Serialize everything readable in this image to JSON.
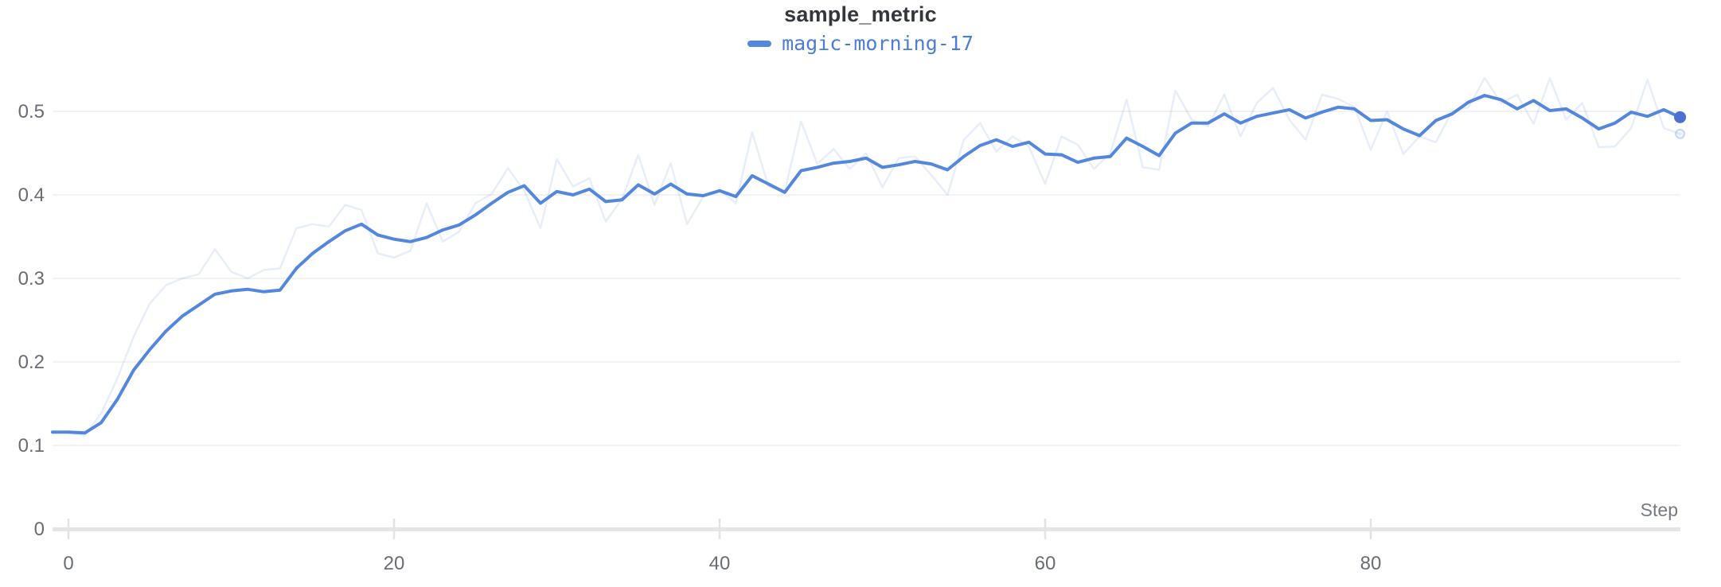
{
  "header": {
    "title": "sample_metric"
  },
  "legend": {
    "items": [
      {
        "label": "magic-morning-17",
        "color": "#5387DD"
      }
    ]
  },
  "axes": {
    "x_label": "Step",
    "x_ticks": [
      0,
      20,
      40,
      60,
      80
    ],
    "y_ticks": [
      0,
      0.1,
      0.2,
      0.3,
      0.4,
      0.5
    ]
  },
  "colors": {
    "line": "#5387DD",
    "endpoint_dot": "#4B70D2",
    "raw_line_rgba": "rgba(83,135,221,0.14)",
    "raw_ring_rgba": "rgba(83,135,221,0.30)",
    "raw_fill_rgba": "rgba(83,135,221,0.08)",
    "gridline": "#ededed",
    "axis_band": "#e5e5e5",
    "tick_mark": "#e3e3e3",
    "tick_text": "#696c76",
    "step_text": "#767982",
    "title_text": "#33363c"
  },
  "chart_data": {
    "type": "line",
    "title": "sample_metric",
    "xlabel": "Step",
    "ylabel": "",
    "xlim": [
      0,
      99
    ],
    "ylim": [
      0,
      0.555
    ],
    "xticks": [
      0,
      20,
      40,
      60,
      80
    ],
    "yticks": [
      0,
      0.1,
      0.2,
      0.3,
      0.4,
      0.5
    ],
    "grid": "horizontal-only",
    "legend_position": "top-center",
    "x": [
      0,
      1,
      2,
      3,
      4,
      5,
      6,
      7,
      8,
      9,
      10,
      11,
      12,
      13,
      14,
      15,
      16,
      17,
      18,
      19,
      20,
      21,
      22,
      23,
      24,
      25,
      26,
      27,
      28,
      29,
      30,
      31,
      32,
      33,
      34,
      35,
      36,
      37,
      38,
      39,
      40,
      41,
      42,
      43,
      44,
      45,
      46,
      47,
      48,
      49,
      50,
      51,
      52,
      53,
      54,
      55,
      56,
      57,
      58,
      59,
      60,
      61,
      62,
      63,
      64,
      65,
      66,
      67,
      68,
      69,
      70,
      71,
      72,
      73,
      74,
      75,
      76,
      77,
      78,
      79,
      80,
      81,
      82,
      83,
      84,
      85,
      86,
      87,
      88,
      89,
      90,
      91,
      92,
      93,
      94,
      95,
      96,
      97,
      98,
      99
    ],
    "series": [
      {
        "name": "magic-morning-17 (smoothed)",
        "role": "smoothed",
        "end_value": 0.493,
        "values": [
          0.116,
          0.115,
          0.127,
          0.155,
          0.19,
          0.215,
          0.237,
          0.255,
          0.268,
          0.281,
          0.285,
          0.287,
          0.284,
          0.286,
          0.312,
          0.33,
          0.344,
          0.357,
          0.365,
          0.352,
          0.347,
          0.344,
          0.349,
          0.358,
          0.364,
          0.376,
          0.39,
          0.403,
          0.411,
          0.39,
          0.404,
          0.4,
          0.407,
          0.392,
          0.394,
          0.412,
          0.401,
          0.413,
          0.401,
          0.399,
          0.405,
          0.398,
          0.423,
          0.413,
          0.403,
          0.429,
          0.433,
          0.438,
          0.44,
          0.444,
          0.433,
          0.436,
          0.44,
          0.437,
          0.43,
          0.446,
          0.459,
          0.466,
          0.458,
          0.463,
          0.449,
          0.448,
          0.439,
          0.444,
          0.446,
          0.468,
          0.458,
          0.447,
          0.474,
          0.486,
          0.486,
          0.497,
          0.486,
          0.494,
          0.498,
          0.502,
          0.492,
          0.499,
          0.505,
          0.503,
          0.489,
          0.49,
          0.479,
          0.471,
          0.489,
          0.497,
          0.511,
          0.519,
          0.514,
          0.503,
          0.513,
          0.501,
          0.503,
          0.492,
          0.479,
          0.486,
          0.499,
          0.494,
          0.502,
          0.493
        ]
      },
      {
        "name": "magic-morning-17 (original)",
        "role": "raw",
        "end_value": 0.473,
        "values": [
          0.115,
          0.112,
          0.138,
          0.18,
          0.23,
          0.27,
          0.292,
          0.3,
          0.305,
          0.335,
          0.308,
          0.3,
          0.31,
          0.312,
          0.36,
          0.365,
          0.362,
          0.388,
          0.382,
          0.33,
          0.325,
          0.333,
          0.39,
          0.344,
          0.356,
          0.39,
          0.401,
          0.432,
          0.405,
          0.36,
          0.443,
          0.41,
          0.42,
          0.368,
          0.395,
          0.448,
          0.388,
          0.438,
          0.365,
          0.398,
          0.406,
          0.39,
          0.475,
          0.41,
          0.404,
          0.488,
          0.437,
          0.455,
          0.431,
          0.45,
          0.409,
          0.444,
          0.446,
          0.424,
          0.4,
          0.466,
          0.486,
          0.452,
          0.47,
          0.458,
          0.413,
          0.47,
          0.46,
          0.431,
          0.45,
          0.514,
          0.433,
          0.43,
          0.525,
          0.49,
          0.482,
          0.52,
          0.47,
          0.51,
          0.528,
          0.49,
          0.466,
          0.52,
          0.515,
          0.505,
          0.454,
          0.5,
          0.449,
          0.47,
          0.463,
          0.5,
          0.505,
          0.54,
          0.51,
          0.52,
          0.485,
          0.54,
          0.49,
          0.51,
          0.457,
          0.458,
          0.48,
          0.538,
          0.48,
          0.473
        ]
      }
    ]
  }
}
